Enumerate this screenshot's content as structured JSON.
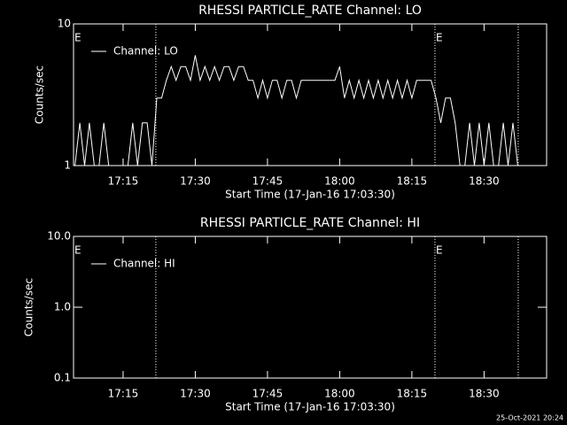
{
  "chart_data": [
    {
      "type": "line",
      "title": "RHESSI PARTICLE_RATE Channel: LO",
      "xlabel": "Start Time (17-Jan-16 17:03:30)",
      "ylabel": "Counts/sec",
      "log_y": true,
      "xlim": [
        1024.7,
        1123
      ],
      "xticks": [
        {
          "value": 1035,
          "label": "17:15"
        },
        {
          "value": 1050,
          "label": "17:30"
        },
        {
          "value": 1065,
          "label": "17:45"
        },
        {
          "value": 1080,
          "label": "18:00"
        },
        {
          "value": 1095,
          "label": "18:15"
        },
        {
          "value": 1110,
          "label": "18:30"
        }
      ],
      "ylim": [
        1,
        10
      ],
      "yticks": [
        1,
        10
      ],
      "vlines": [
        1041.8,
        1099.8,
        1117.1
      ],
      "annotations": [
        {
          "text": "E",
          "x": 1024.7
        },
        {
          "text": "E",
          "x": 1099.8
        }
      ],
      "legend": "upper left",
      "series": [
        {
          "name": "Channel: LO",
          "color": "#ffffff",
          "x": [
            1025,
            1026,
            1027,
            1028,
            1029,
            1030,
            1031,
            1032,
            1033,
            1034,
            1035,
            1036,
            1037,
            1038,
            1039,
            1040,
            1041,
            1042,
            1043,
            1044,
            1045,
            1046,
            1047,
            1048,
            1049,
            1050,
            1051,
            1052,
            1053,
            1054,
            1055,
            1056,
            1057,
            1058,
            1059,
            1060,
            1061,
            1062,
            1063,
            1064,
            1065,
            1066,
            1067,
            1068,
            1069,
            1070,
            1071,
            1072,
            1073,
            1074,
            1075,
            1076,
            1077,
            1078,
            1079,
            1080,
            1081,
            1082,
            1083,
            1084,
            1085,
            1086,
            1087,
            1088,
            1089,
            1090,
            1091,
            1092,
            1093,
            1094,
            1095,
            1096,
            1097,
            1098,
            1099,
            1100,
            1101,
            1102,
            1103,
            1104,
            1105,
            1106,
            1107,
            1108,
            1109,
            1110,
            1111,
            1112,
            1113,
            1114,
            1115,
            1116,
            1117
          ],
          "values": [
            1,
            2,
            1,
            2,
            1,
            1,
            2,
            1,
            1,
            1,
            1,
            1,
            2,
            1,
            2,
            2,
            1,
            3,
            3,
            4,
            5,
            4,
            5,
            5,
            4,
            6,
            4,
            5,
            4,
            5,
            4,
            5,
            5,
            4,
            5,
            5,
            4,
            4,
            3,
            4,
            3,
            4,
            4,
            3,
            4,
            4,
            3,
            4,
            4,
            4,
            4,
            4,
            4,
            4,
            4,
            5,
            3,
            4,
            3,
            4,
            3,
            4,
            3,
            4,
            3,
            4,
            3,
            4,
            3,
            4,
            3,
            4,
            4,
            4,
            4,
            3,
            2,
            3,
            3,
            2,
            1,
            1,
            2,
            1,
            2,
            1,
            2,
            1,
            1,
            2,
            1,
            2,
            1
          ]
        }
      ]
    },
    {
      "type": "line",
      "title": "RHESSI PARTICLE_RATE Channel: HI",
      "xlabel": "Start Time (17-Jan-16 17:03:30)",
      "ylabel": "Counts/sec",
      "log_y": true,
      "xlim": [
        1024.7,
        1123
      ],
      "xticks": [
        {
          "value": 1035,
          "label": "17:15"
        },
        {
          "value": 1050,
          "label": "17:30"
        },
        {
          "value": 1065,
          "label": "17:45"
        },
        {
          "value": 1080,
          "label": "18:00"
        },
        {
          "value": 1095,
          "label": "18:15"
        },
        {
          "value": 1110,
          "label": "18:30"
        }
      ],
      "ylim": [
        0.1,
        10
      ],
      "yticks": [
        0.1,
        {
          "value": 1,
          "label": "1.0"
        },
        {
          "value": 10,
          "label": "10.0"
        }
      ],
      "vlines": [
        1041.8,
        1099.8,
        1117.1
      ],
      "annotations": [
        {
          "text": "E",
          "x": 1024.7
        },
        {
          "text": "E",
          "x": 1099.8
        }
      ],
      "legend": "upper left",
      "series": [
        {
          "name": "Channel: HI",
          "color": "#ffffff",
          "x": [],
          "values": []
        }
      ]
    }
  ],
  "footer": "25-Oct-2021 20:24"
}
